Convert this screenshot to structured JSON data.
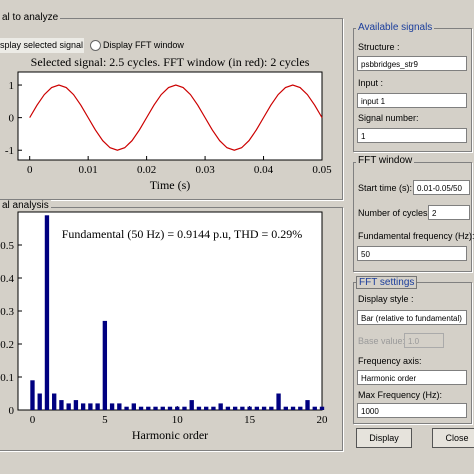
{
  "signal_panel": {
    "title": "al to analyze",
    "radio_selected": "splay selected signal",
    "radio_fft": "Display FFT window",
    "chart": {
      "type": "line",
      "title": "Selected signal: 2.5 cycles. FFT window (in red): 2 cycles",
      "xlabel": "Time (s)",
      "color": "#cc0000",
      "x": [
        0,
        0.00125,
        0.0025,
        0.00375,
        0.005,
        0.00625,
        0.0075,
        0.00875,
        0.01,
        0.01125,
        0.0125,
        0.01375,
        0.015,
        0.01625,
        0.0175,
        0.01875,
        0.02,
        0.02125,
        0.0225,
        0.02375,
        0.025,
        0.02625,
        0.0275,
        0.02875,
        0.03,
        0.03125,
        0.0325,
        0.03375,
        0.035,
        0.03625,
        0.0375,
        0.03875,
        0.04,
        0.04125,
        0.0425,
        0.04375,
        0.045,
        0.04625,
        0.0475,
        0.04875,
        0.05
      ],
      "values": [
        0,
        0.383,
        0.707,
        0.924,
        1,
        0.924,
        0.707,
        0.383,
        0,
        -0.383,
        -0.707,
        -0.924,
        -1,
        -0.924,
        -0.707,
        -0.383,
        0,
        0.383,
        0.707,
        0.924,
        1,
        0.924,
        0.707,
        0.383,
        0,
        -0.383,
        -0.707,
        -0.924,
        -1,
        -0.924,
        -0.707,
        -0.383,
        0,
        0.383,
        0.707,
        0.924,
        1,
        0.924,
        0.707,
        0.383,
        0
      ],
      "xlim": [
        -0.002,
        0.05
      ],
      "xticks": [
        0,
        0.01,
        0.02,
        0.03,
        0.04,
        0.05
      ],
      "ylim": [
        -1.3,
        1.4
      ],
      "yticks": [
        -1,
        0,
        1
      ]
    }
  },
  "analysis_panel": {
    "title": "al analysis",
    "chart": {
      "type": "bar",
      "title": "Fundamental (50 Hz) = 0.9144 p.u, THD = 0.29%",
      "xlabel": "Harmonic order",
      "color": "#000080",
      "x": [
        0,
        0.5,
        1,
        1.5,
        2,
        2.5,
        3,
        3.5,
        4,
        4.5,
        5,
        5.5,
        6,
        6.5,
        7,
        7.5,
        8,
        8.5,
        9,
        9.5,
        10,
        10.5,
        11,
        11.5,
        12,
        12.5,
        13,
        13.5,
        14,
        14.5,
        15,
        15.5,
        16,
        16.5,
        17,
        17.5,
        18,
        18.5,
        19,
        19.5,
        20
      ],
      "values": [
        0.09,
        0.05,
        0.59,
        0.05,
        0.03,
        0.02,
        0.03,
        0.02,
        0.02,
        0.02,
        0.27,
        0.02,
        0.02,
        0.01,
        0.02,
        0.01,
        0.01,
        0.01,
        0.01,
        0.01,
        0.01,
        0.01,
        0.03,
        0.01,
        0.01,
        0.01,
        0.02,
        0.01,
        0.01,
        0.01,
        0.01,
        0.01,
        0.01,
        0.01,
        0.05,
        0.01,
        0.01,
        0.01,
        0.03,
        0.01,
        0.01
      ],
      "xlim": [
        -1,
        20
      ],
      "xticks": [
        0,
        5,
        10,
        15,
        20
      ],
      "ylim": [
        0,
        0.6
      ],
      "yticks": [
        0,
        0.1,
        0.2,
        0.3,
        0.4,
        0.5
      ]
    }
  },
  "available_signals": {
    "title": "Available signals",
    "structure_label": "Structure :",
    "structure_value": "psbbridges_str9",
    "input_label": "Input :",
    "input_value": "input 1",
    "signal_label": "Signal number:",
    "signal_value": "1"
  },
  "fft_window": {
    "title": "FFT window",
    "start_label": "Start time (s):",
    "start_value": "0.01-0.05/50",
    "cycles_label": "Number of cycles:",
    "cycles_value": "2",
    "freq_label": "Fundamental frequency (Hz):",
    "freq_value": "50"
  },
  "fft_settings": {
    "title": "FFT settings",
    "style_label": "Display style :",
    "style_value": "Bar (relative to fundamental)",
    "base_label": "Base value:",
    "base_value": "1.0",
    "axis_label": "Frequency axis:",
    "axis_value": "Harmonic order",
    "max_label": "Max Frequency (Hz):",
    "max_value": "1000"
  },
  "buttons": {
    "display": "Display",
    "close": "Close"
  }
}
